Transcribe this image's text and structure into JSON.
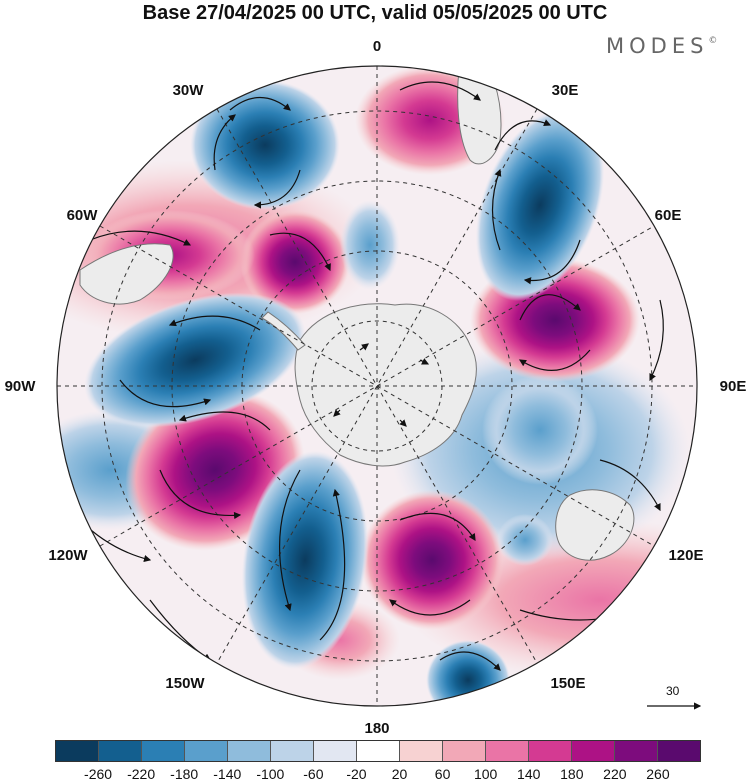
{
  "header": {
    "title": "Base 27/04/2025 00 UTC, valid 05/05/2025 00 UTC",
    "logo": "MODES",
    "logo_mark": "©"
  },
  "map": {
    "longitude_labels": [
      "0",
      "30E",
      "60E",
      "90E",
      "120E",
      "150E",
      "180",
      "150W",
      "120W",
      "90W",
      "60W",
      "30W"
    ],
    "reference_vector_label": "30",
    "colors": {
      "land": "#ececec",
      "coast": "#777777",
      "vector": "#111111",
      "graticule": "#333333"
    }
  },
  "colorbar": {
    "tick_labels": [
      "-260",
      "-220",
      "-180",
      "-140",
      "-100",
      "-60",
      "-20",
      "20",
      "60",
      "100",
      "140",
      "180",
      "220",
      "260"
    ],
    "colors": [
      "#0b3b5e",
      "#135f8f",
      "#2b7fb4",
      "#5a9fcc",
      "#8fbcdc",
      "#bdd3e8",
      "#e2e7f2",
      "#ffffff",
      "#f7d2d2",
      "#f2a8b7",
      "#ea74a6",
      "#d43a92",
      "#ad1285",
      "#7d0c7d",
      "#5a0a6e"
    ]
  }
}
